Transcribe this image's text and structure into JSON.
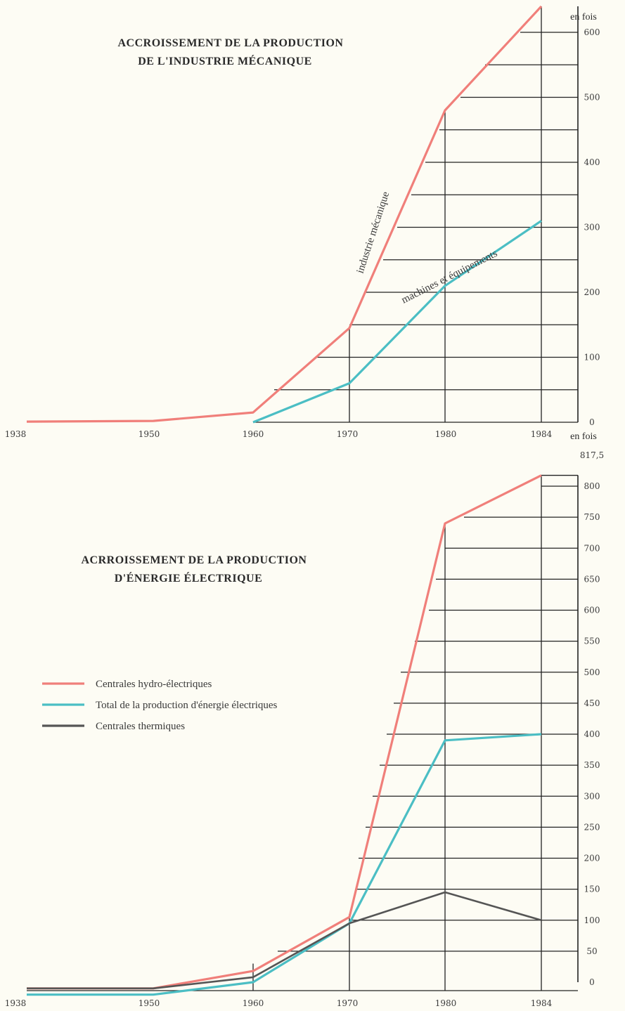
{
  "colors": {
    "pink": "#f07f7a",
    "teal": "#4bbec4",
    "dark": "#555555",
    "grid": "#222222",
    "background": "#fdfcf4"
  },
  "chart_data": [
    {
      "type": "line",
      "title": [
        "ACCROISSEMENT DE LA PRODUCTION",
        "DE L'INDUSTRIE MÉCANIQUE"
      ],
      "unit_label": "en fois",
      "x_ticks": [
        "1938",
        "1950",
        "1960",
        "1970",
        "1980",
        "1984"
      ],
      "y_ticks": [
        "0",
        "100",
        "200",
        "300",
        "400",
        "500",
        "600"
      ],
      "ylim": [
        0,
        600
      ],
      "grid": true,
      "series": [
        {
          "name": "industrie mécanique",
          "color": "#f07f7a",
          "x": [
            1938,
            1950,
            1960,
            1970,
            1980,
            1984
          ],
          "y": [
            1,
            2,
            15,
            145,
            480,
            640
          ]
        },
        {
          "name": "machines et équipements",
          "color": "#4bbec4",
          "x": [
            1960,
            1970,
            1980,
            1984
          ],
          "y": [
            0,
            60,
            210,
            310
          ]
        }
      ]
    },
    {
      "type": "line",
      "title": [
        "ACRROISSEMENT DE LA PRODUCTION",
        "D'ÉNERGIE ÉLECTRIQUE"
      ],
      "unit_label": "en fois",
      "top_annotation": "817,5",
      "x_ticks": [
        "1938",
        "1950",
        "1960",
        "1970",
        "1980",
        "1984"
      ],
      "y_ticks": [
        "0",
        "50",
        "100",
        "150",
        "200",
        "250",
        "300",
        "350",
        "400",
        "450",
        "500",
        "550",
        "600",
        "650",
        "700",
        "750",
        "800"
      ],
      "ylim": [
        0,
        817.5
      ],
      "grid": true,
      "legend": {
        "placement": "left",
        "items": [
          {
            "label": "Centrales hydro-électriques",
            "color": "#f07f7a"
          },
          {
            "label": "Total de la production d'énergie électriques",
            "color": "#4bbec4"
          },
          {
            "label": "Centrales thermiques",
            "color": "#555555"
          }
        ]
      },
      "series": [
        {
          "name": "Centrales hydro-électriques",
          "color": "#f07f7a",
          "x": [
            1938,
            1950,
            1960,
            1970,
            1980,
            1984
          ],
          "y": [
            -10,
            -10,
            18,
            105,
            740,
            817.5
          ]
        },
        {
          "name": "Total de la production d'énergie électriques",
          "color": "#4bbec4",
          "x": [
            1938,
            1950,
            1960,
            1970,
            1980,
            1984
          ],
          "y": [
            -20,
            -20,
            0,
            95,
            390,
            400
          ]
        },
        {
          "name": "Centrales thermiques",
          "color": "#555555",
          "x": [
            1938,
            1950,
            1960,
            1970,
            1980,
            1984
          ],
          "y": [
            -10,
            -10,
            8,
            95,
            145,
            100
          ]
        }
      ]
    }
  ]
}
